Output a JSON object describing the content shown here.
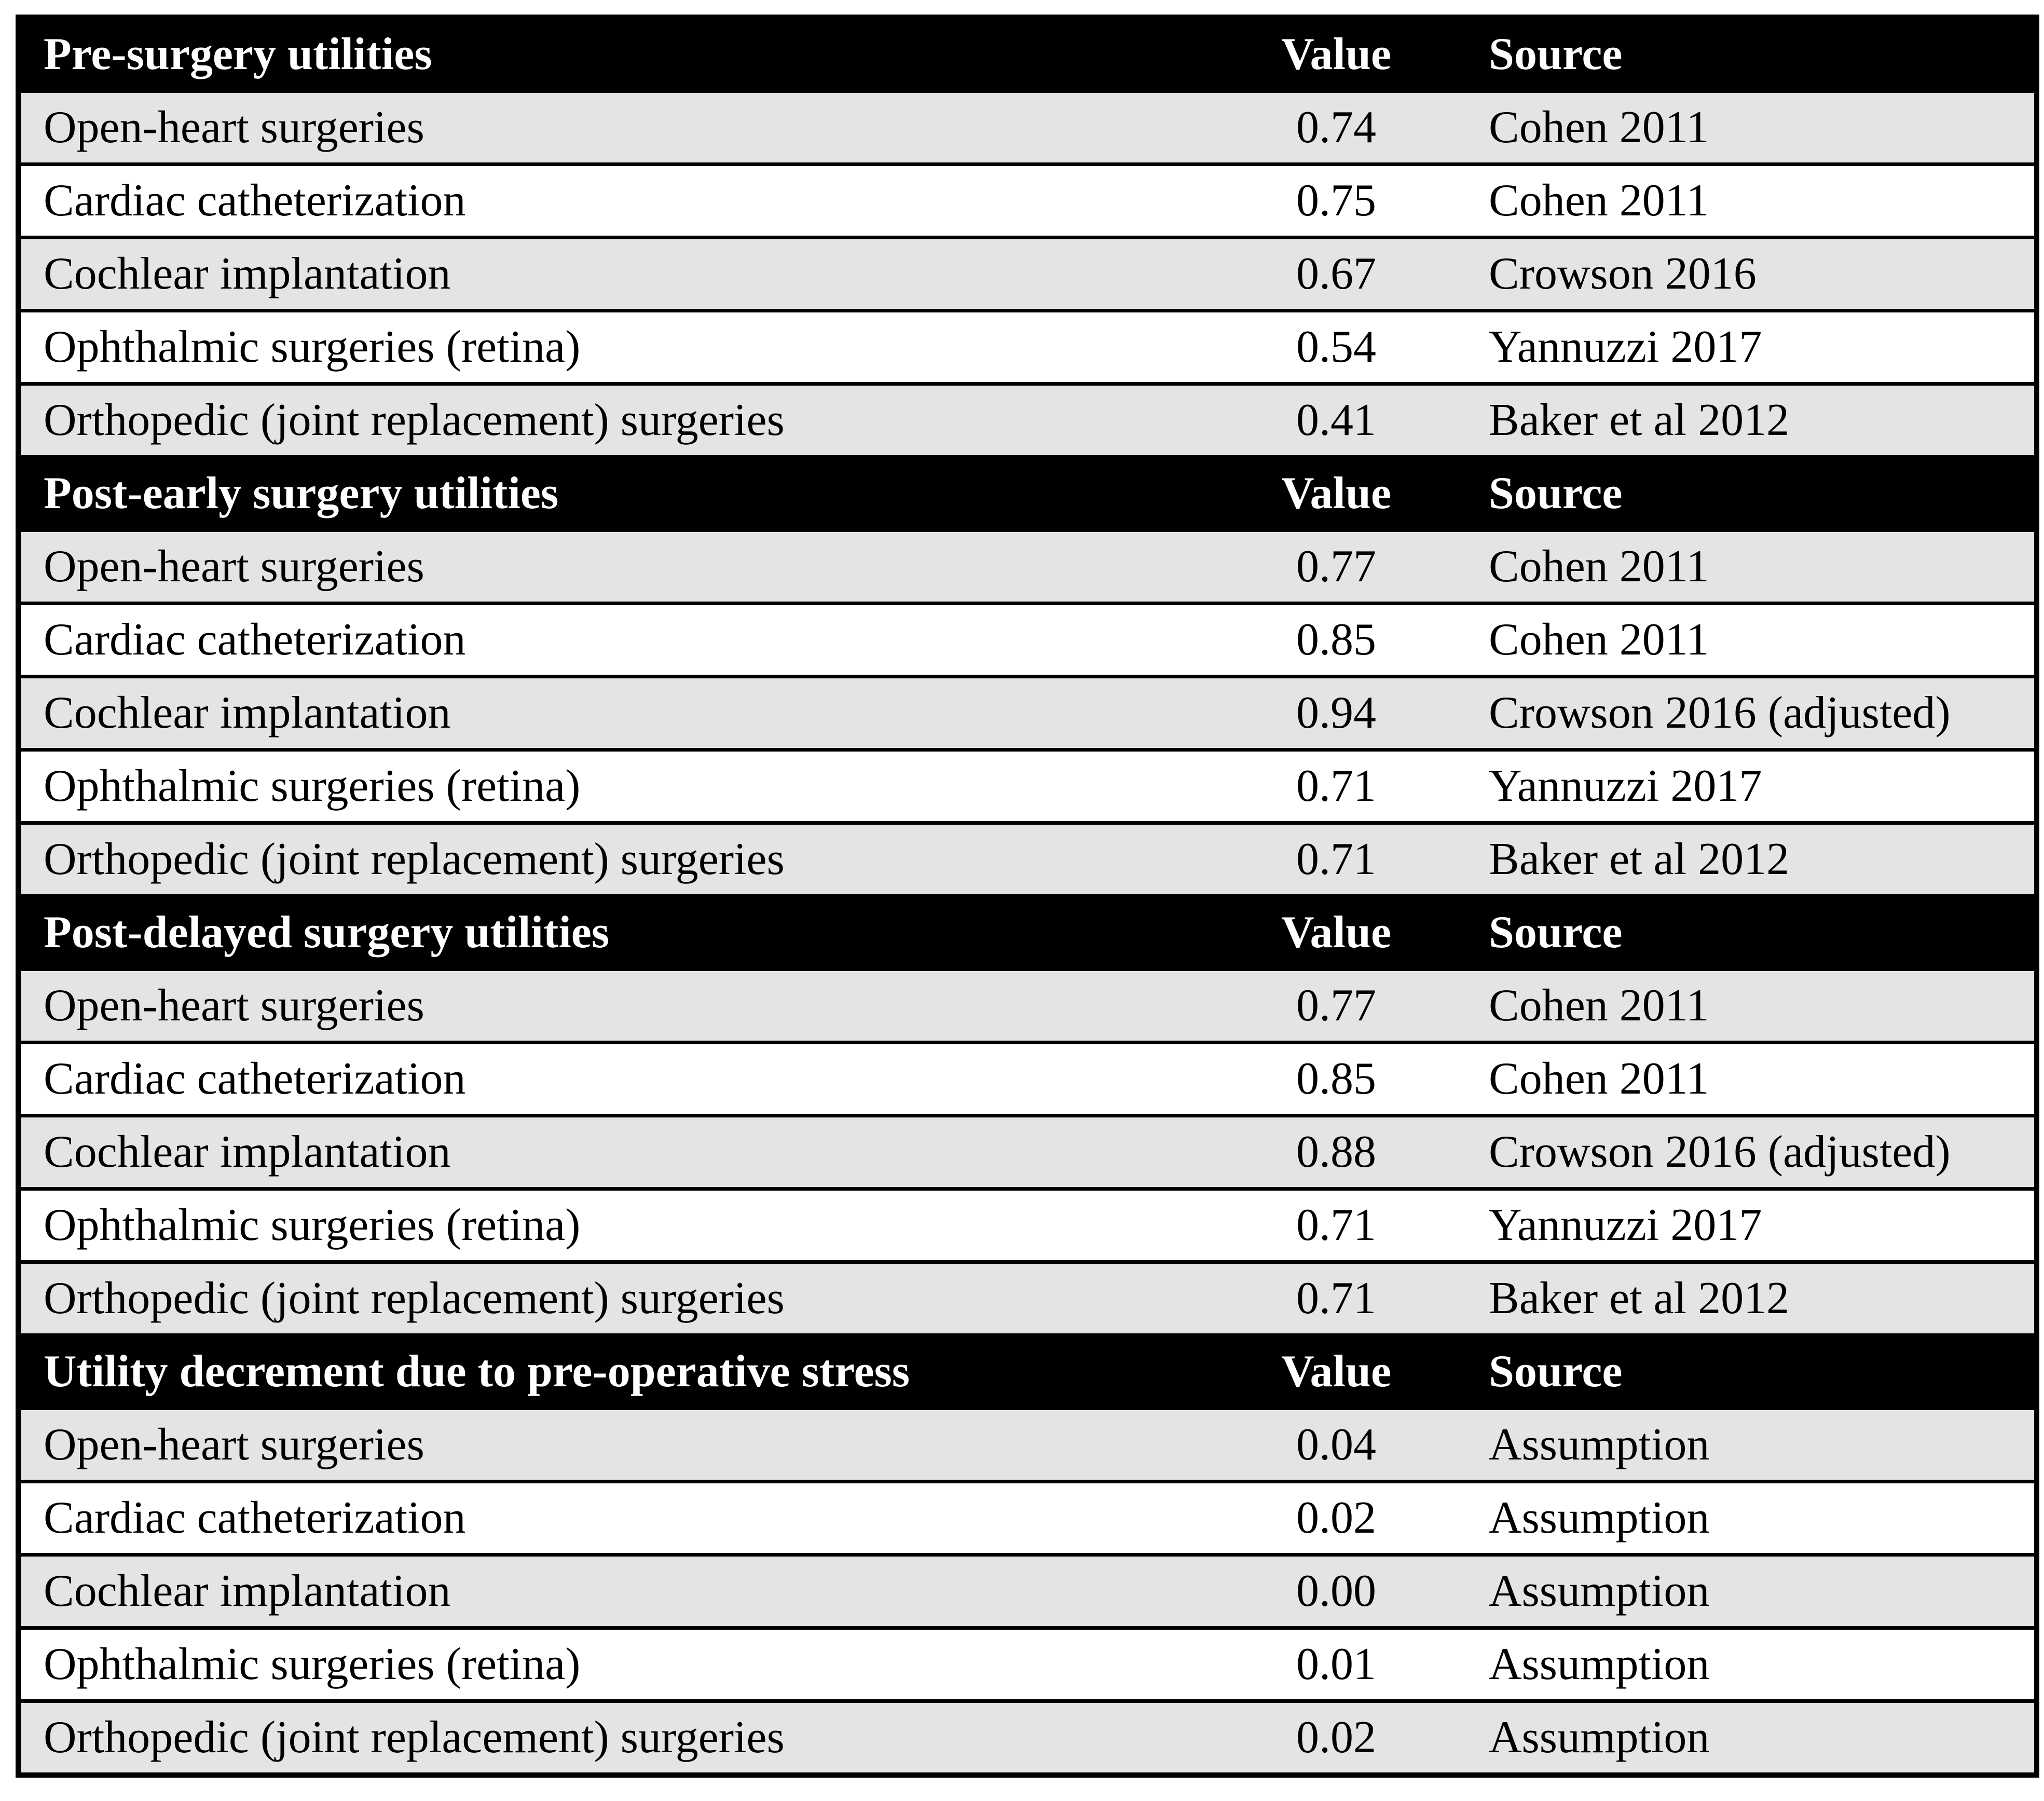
{
  "colors": {
    "header_bg": "#000000",
    "header_text": "#ffffff",
    "row_alt_bg": "#e4e4e4",
    "row_bg": "#ffffff",
    "border": "#000000"
  },
  "table": {
    "sections": [
      {
        "header": "Pre-surgery utilities",
        "value_label": "Value",
        "source_label": "Source",
        "rows": [
          {
            "label": "Open-heart surgeries",
            "value": "0.74",
            "source": "Cohen 2011"
          },
          {
            "label": "Cardiac catheterization",
            "value": "0.75",
            "source": "Cohen 2011"
          },
          {
            "label": "Cochlear implantation",
            "value": "0.67",
            "source": "Crowson 2016"
          },
          {
            "label": "Ophthalmic surgeries (retina)",
            "value": "0.54",
            "source": "Yannuzzi 2017"
          },
          {
            "label": "Orthopedic (joint replacement) surgeries",
            "value": "0.41",
            "source": "Baker et al 2012"
          }
        ]
      },
      {
        "header": "Post-early surgery utilities",
        "value_label": "Value",
        "source_label": "Source",
        "rows": [
          {
            "label": "Open-heart surgeries",
            "value": "0.77",
            "source": "Cohen 2011"
          },
          {
            "label": "Cardiac catheterization",
            "value": "0.85",
            "source": "Cohen 2011"
          },
          {
            "label": "Cochlear implantation",
            "value": "0.94",
            "source": "Crowson 2016 (adjusted)"
          },
          {
            "label": "Ophthalmic surgeries (retina)",
            "value": "0.71",
            "source": "Yannuzzi 2017"
          },
          {
            "label": "Orthopedic (joint replacement) surgeries",
            "value": "0.71",
            "source": "Baker et al 2012"
          }
        ]
      },
      {
        "header": "Post-delayed surgery utilities",
        "value_label": "Value",
        "source_label": "Source",
        "rows": [
          {
            "label": "Open-heart surgeries",
            "value": "0.77",
            "source": "Cohen 2011"
          },
          {
            "label": "Cardiac catheterization",
            "value": "0.85",
            "source": "Cohen 2011"
          },
          {
            "label": "Cochlear implantation",
            "value": "0.88",
            "source": "Crowson 2016 (adjusted)"
          },
          {
            "label": "Ophthalmic surgeries (retina)",
            "value": "0.71",
            "source": "Yannuzzi 2017"
          },
          {
            "label": "Orthopedic (joint replacement) surgeries",
            "value": "0.71",
            "source": "Baker et al 2012"
          }
        ]
      },
      {
        "header": "Utility decrement due to pre-operative stress",
        "value_label": "Value",
        "source_label": "Source",
        "rows": [
          {
            "label": "Open-heart surgeries",
            "value": "0.04",
            "source": "Assumption"
          },
          {
            "label": "Cardiac catheterization",
            "value": "0.02",
            "source": "Assumption"
          },
          {
            "label": "Cochlear implantation",
            "value": "0.00",
            "source": "Assumption"
          },
          {
            "label": "Ophthalmic surgeries (retina)",
            "value": "0.01",
            "source": "Assumption"
          },
          {
            "label": "Orthopedic (joint replacement) surgeries",
            "value": "0.02",
            "source": "Assumption"
          }
        ]
      }
    ]
  }
}
